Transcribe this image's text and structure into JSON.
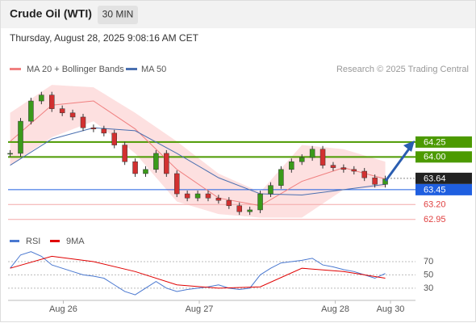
{
  "header": {
    "title": "Crude Oil (WTI)",
    "interval": "30 MIN",
    "date": "Thursday, August 28, 2025 9:08:16 AM CET",
    "legend": [
      "MA 20 + Bollinger Bands",
      "MA 50"
    ],
    "credit": "Research © 2025 Trading Central"
  },
  "chart_data": [
    {
      "type": "candlestick",
      "xlim": [
        -0.2,
        38.9
      ],
      "ylim": [
        62.77,
        65.28
      ],
      "xticks": [
        {
          "value": 5.1,
          "label": "Aug 26"
        },
        {
          "value": 18.15,
          "label": "Aug 27"
        },
        {
          "value": 31.2,
          "label": "Aug 28"
        },
        {
          "value": 36.5,
          "label": "Aug 30"
        }
      ],
      "up_color": "#3a9a1a",
      "down_color": "#d23030",
      "close": [
        64.06,
        64.6,
        64.94,
        65.04,
        64.81,
        64.74,
        64.67,
        64.49,
        64.47,
        64.4,
        64.2,
        63.92,
        63.72,
        63.79,
        64.06,
        63.72,
        63.38,
        63.31,
        63.38,
        63.31,
        63.27,
        63.18,
        63.08,
        63.11,
        63.38,
        63.52,
        63.79,
        63.92,
        63.99,
        64.13,
        63.86,
        63.82,
        63.79,
        63.76,
        63.65,
        63.54,
        63.63
      ],
      "ma_x": [
        0,
        4,
        8,
        12,
        16,
        20,
        24,
        28,
        32,
        36
      ],
      "series": [
        {
          "name": "MA 20 + Bollinger Bands",
          "color": "#f08080",
          "values": [
            64.26,
            64.87,
            64.94,
            64.47,
            63.79,
            63.31,
            63.18,
            63.59,
            63.82,
            63.63
          ]
        },
        {
          "name": "MA 50",
          "color": "#4a6fb0",
          "values": [
            63.86,
            64.3,
            64.49,
            64.44,
            64.06,
            63.65,
            63.38,
            63.36,
            63.45,
            63.54
          ]
        }
      ],
      "band": {
        "color": "#fde0e0",
        "upper": [
          64.74,
          65.21,
          65.17,
          64.74,
          64.26,
          63.72,
          63.41,
          64.2,
          64.13,
          63.92
        ],
        "lower": [
          63.86,
          64.33,
          64.6,
          64.06,
          63.25,
          63.04,
          62.98,
          62.98,
          63.45,
          63.49
        ]
      },
      "levels": {
        "values": [
          64.25,
          64,
          63.64,
          63.45,
          63.2,
          62.95
        ],
        "value_labels": [
          "64.25",
          "64.00",
          "63.64",
          "63.45",
          "63.20",
          "62.95"
        ],
        "colors": [
          "#4c9a00",
          "#4c9a00",
          "#222222",
          "#1f5fe0",
          "#e04040",
          "#e04040"
        ],
        "styles": [
          "box",
          "box",
          "box",
          "box",
          "text",
          "text"
        ]
      }
    },
    {
      "type": "line",
      "ylim": [
        14,
        87
      ],
      "yticks": [
        70,
        50,
        30
      ],
      "series": [
        {
          "name": "RSI",
          "color": "#4a78d0",
          "values": [
            60,
            80,
            85,
            78,
            65,
            60,
            55,
            50,
            48,
            45,
            35,
            25,
            20,
            30,
            40,
            30,
            25,
            28,
            30,
            32,
            35,
            30,
            28,
            30,
            50,
            60,
            68,
            70,
            72,
            75,
            65,
            62,
            58,
            55,
            50,
            45,
            52
          ]
        },
        {
          "name": "9MA",
          "color": "#e00000",
          "x": [
            0,
            4,
            8,
            12,
            16,
            20,
            24,
            28,
            32,
            36
          ],
          "values": [
            60,
            78,
            70,
            55,
            35,
            30,
            32,
            60,
            55,
            45
          ]
        }
      ]
    }
  ]
}
